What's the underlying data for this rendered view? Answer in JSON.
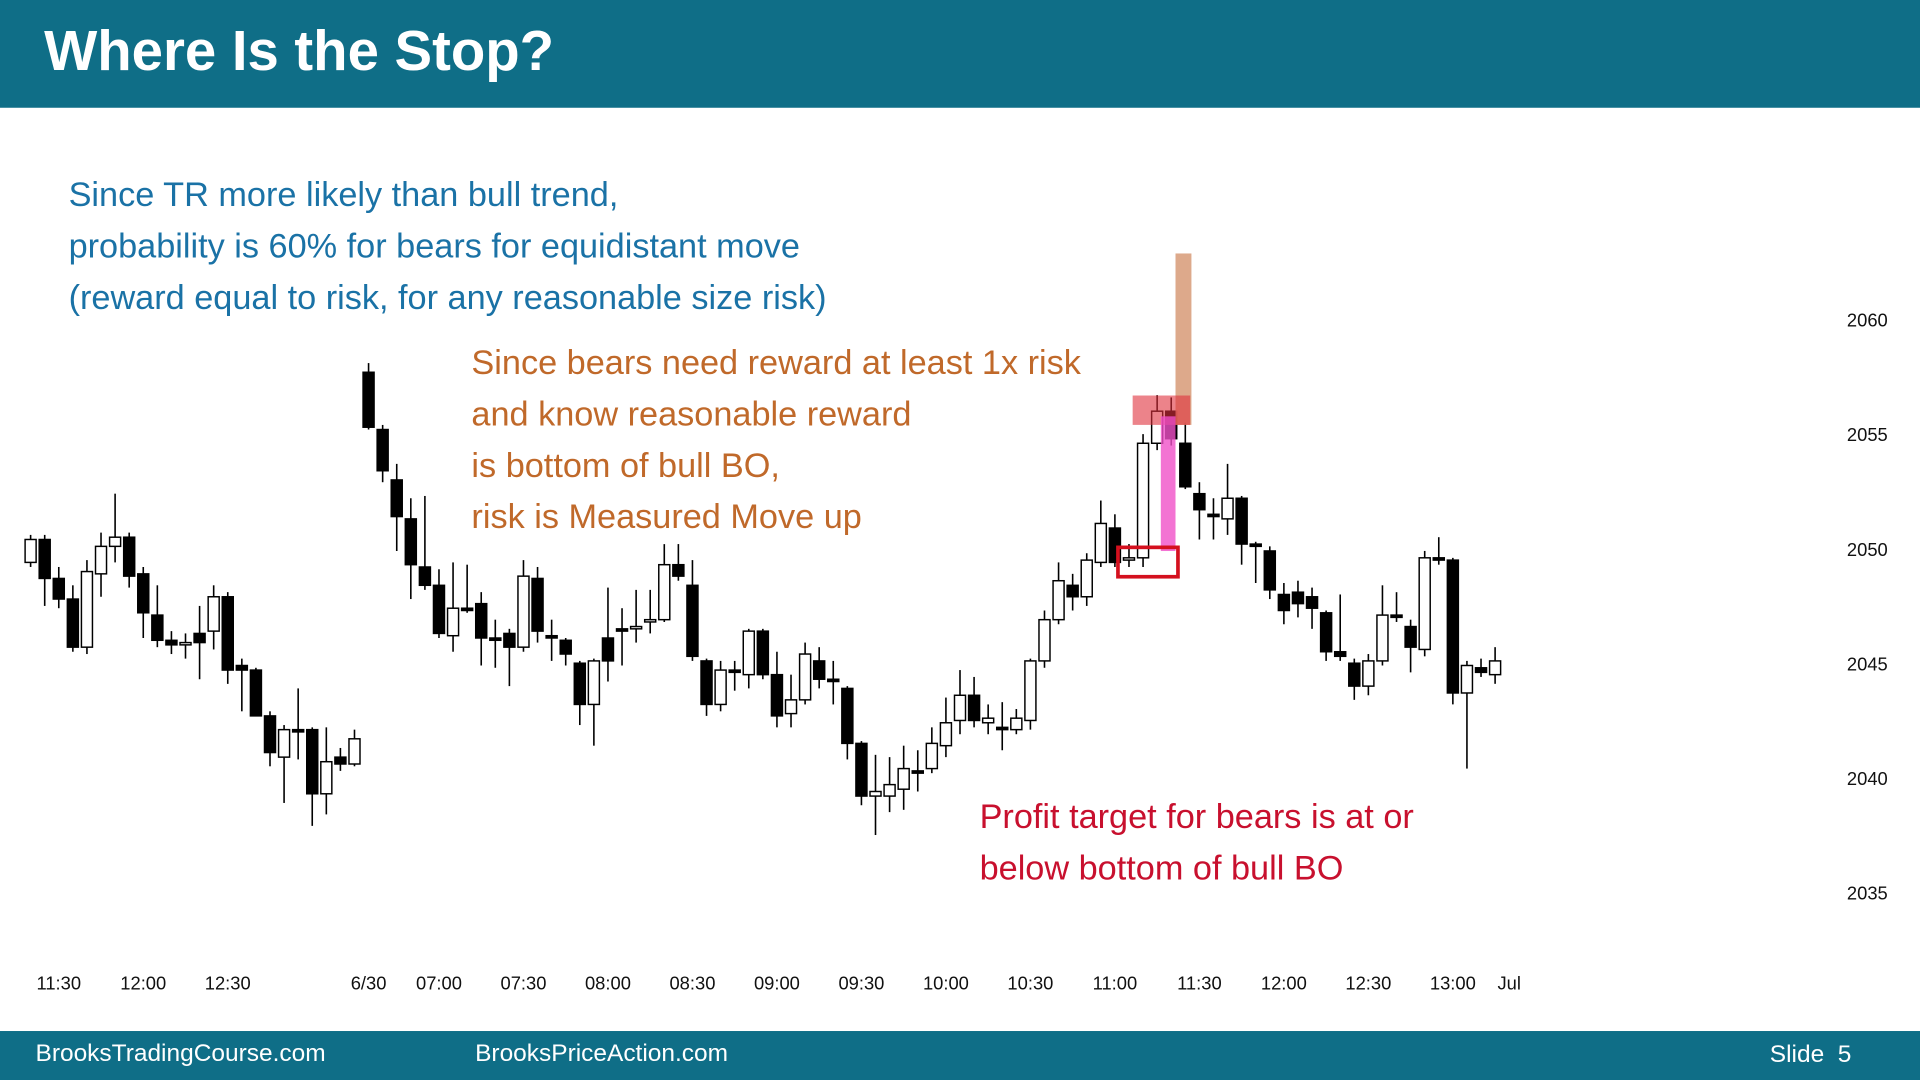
{
  "header": {
    "title": "Where Is the Stop?"
  },
  "chart_data": {
    "type": "candlestick",
    "categories": [
      null,
      null,
      "11:30",
      null,
      null,
      null,
      null,
      null,
      "12:00",
      null,
      null,
      null,
      null,
      null,
      "12:30",
      null,
      null,
      null,
      null,
      null,
      null,
      null,
      null,
      null,
      "6/30",
      null,
      null,
      null,
      null,
      "07:00",
      null,
      null,
      null,
      null,
      null,
      "07:30",
      null,
      null,
      null,
      null,
      null,
      "08:00",
      null,
      null,
      null,
      null,
      null,
      "08:30",
      null,
      null,
      null,
      null,
      null,
      "09:00",
      null,
      null,
      null,
      null,
      null,
      "09:30",
      null,
      null,
      null,
      null,
      null,
      "10:00",
      null,
      null,
      null,
      null,
      null,
      "10:30",
      null,
      null,
      null,
      null,
      null,
      "11:00",
      null,
      null,
      null,
      null,
      null,
      "11:30",
      null,
      null,
      null,
      null,
      null,
      "12:00",
      null,
      null,
      null,
      null,
      null,
      "12:30",
      null,
      null,
      null,
      null,
      null,
      "13:00",
      null,
      null,
      null,
      "Jul"
    ],
    "open": [
      2049.5,
      2050.5,
      2048.8,
      2047.9,
      2045.8,
      2049,
      2050.2,
      2050.6,
      2049,
      2047.2,
      2046.1,
      2045.9,
      2046.4,
      2046.5,
      2048,
      2045,
      2044.8,
      2042.8,
      2041,
      2042.2,
      2042.2,
      2039.4,
      2041,
      2040.7,
      2057.8,
      2055.3,
      2053.1,
      2051.4,
      2049.3,
      2048.5,
      2046.3,
      2047.5,
      2047.7,
      2046.2,
      2046.4,
      2045.8,
      2048.8,
      2046.3,
      2046.1,
      2045.1,
      2043.3,
      2046.2,
      2046.6,
      2046.6,
      2046.9,
      2047,
      2049.4,
      2048.5,
      2045.2,
      2043.3,
      2044.8,
      2044.6,
      2046.5,
      2044.6,
      2042.9,
      2043.5,
      2045.2,
      2044.4,
      2044,
      2041.6,
      2039.3,
      2039.3,
      2039.6,
      2040.4,
      2040.5,
      2041.5,
      2042.6,
      2043.7,
      2042.5,
      2042.3,
      2042.2,
      2042.6,
      2045.2,
      2047,
      2048.5,
      2048,
      2049.5,
      2051,
      2049.6,
      2049.7,
      2054.7,
      2056.1,
      2054.7,
      2052.5,
      2051.6,
      2051.4,
      2052.3,
      2050.3,
      2050,
      2048.1,
      2048.2,
      2048,
      2047.3,
      2045.6,
      2045.1,
      2044.1,
      2045.2,
      2047.2,
      2046.7,
      2045.7,
      2049.7,
      2049.6,
      2043.8,
      2044.9,
      2044.6,
      null
    ],
    "high": [
      2050.7,
      2050.7,
      2049.3,
      2048.5,
      2049.6,
      2050.8,
      2052.5,
      2050.8,
      2049.3,
      2048.5,
      2046.5,
      2046.4,
      2047.6,
      2048.5,
      2048.2,
      2045.3,
      2044.9,
      2043,
      2042.4,
      2044,
      2042.3,
      2042.3,
      2041.4,
      2042.2,
      2058.2,
      2055.5,
      2053.8,
      2052.3,
      2052.4,
      2049.2,
      2049.5,
      2049.4,
      2048.2,
      2047,
      2046.6,
      2049.6,
      2049.3,
      2047,
      2046.2,
      2045.2,
      2045.3,
      2048.4,
      2047.5,
      2048.3,
      2048.3,
      2050.3,
      2050.3,
      2049.6,
      2045.3,
      2045.2,
      2045.2,
      2046.6,
      2046.6,
      2045.6,
      2044.6,
      2046,
      2045.8,
      2045.2,
      2044.1,
      2041.7,
      2041.1,
      2041,
      2041.5,
      2041.3,
      2042.3,
      2043.6,
      2044.8,
      2044.5,
      2043.3,
      2043.4,
      2043.1,
      2045.3,
      2047.4,
      2049.5,
      2049,
      2049.9,
      2052.2,
      2051.6,
      2050.3,
      2055.1,
      2056.8,
      2056.7,
      2055.6,
      2053,
      2052.3,
      2053.8,
      2052.4,
      2050.4,
      2050.2,
      2048.6,
      2048.7,
      2048.4,
      2047.4,
      2048.1,
      2045.3,
      2045.5,
      2048.5,
      2048.2,
      2047,
      2050,
      2050.6,
      2049.7,
      2045.2,
      2045.3,
      2045.8,
      null
    ],
    "low": [
      2049.3,
      2047.6,
      2047.5,
      2045.6,
      2045.5,
      2048,
      2049.5,
      2048.4,
      2046.2,
      2045.8,
      2045.5,
      2045.3,
      2044.4,
      2045.7,
      2044.2,
      2043,
      2042.8,
      2040.6,
      2039,
      2040.9,
      2038,
      2038.5,
      2040.4,
      2040.6,
      2055.3,
      2053,
      2050,
      2047.9,
      2048.3,
      2046.2,
      2045.6,
      2047.3,
      2045,
      2044.9,
      2044.1,
      2045.6,
      2046,
      2045.2,
      2045,
      2042.4,
      2041.5,
      2044.3,
      2045,
      2046,
      2046.4,
      2046.9,
      2048.7,
      2045.2,
      2042.8,
      2043,
      2043.9,
      2044,
      2044.4,
      2042.3,
      2042.3,
      2043.3,
      2044,
      2043.3,
      2040.9,
      2038.9,
      2037.6,
      2038.6,
      2038.7,
      2039.5,
      2040.3,
      2041,
      2042,
      2042.3,
      2042,
      2041.3,
      2042,
      2042.2,
      2044.9,
      2046.8,
      2047.4,
      2047.6,
      2049.3,
      2049.3,
      2049.3,
      2049.3,
      2054.4,
      2054.6,
      2052.7,
      2050.5,
      2050.5,
      2050.7,
      2049.4,
      2048.6,
      2047.9,
      2046.8,
      2047.1,
      2046.6,
      2045.2,
      2045.2,
      2043.5,
      2043.7,
      2045,
      2046.9,
      2044.7,
      2045.4,
      2049.4,
      2043.3,
      2040.5,
      2044.5,
      2044.2,
      null
    ],
    "close": [
      2050.5,
      2048.8,
      2047.9,
      2045.8,
      2049.1,
      2050.2,
      2050.6,
      2048.9,
      2047.3,
      2046.1,
      2045.9,
      2046,
      2046,
      2048,
      2044.8,
      2044.8,
      2042.8,
      2041.2,
      2042.2,
      2042.1,
      2039.4,
      2040.8,
      2040.7,
      2041.8,
      2055.4,
      2053.5,
      2051.5,
      2049.4,
      2048.5,
      2046.4,
      2047.5,
      2047.4,
      2046.2,
      2046.1,
      2045.8,
      2048.9,
      2046.5,
      2046.2,
      2045.5,
      2043.3,
      2045.2,
      2045.2,
      2046.5,
      2046.7,
      2047,
      2049.4,
      2048.9,
      2045.4,
      2043.3,
      2044.8,
      2044.7,
      2046.5,
      2044.6,
      2042.8,
      2043.5,
      2045.5,
      2044.4,
      2044.3,
      2041.6,
      2039.3,
      2039.5,
      2039.8,
      2040.5,
      2040.3,
      2041.6,
      2042.5,
      2043.7,
      2042.6,
      2042.7,
      2042.2,
      2042.7,
      2045.2,
      2047,
      2048.7,
      2048,
      2049.6,
      2051.2,
      2049.5,
      2049.7,
      2054.7,
      2056.1,
      2054.9,
      2052.8,
      2051.8,
      2051.5,
      2052.3,
      2050.3,
      2050.2,
      2048.3,
      2047.4,
      2047.7,
      2047.5,
      2045.6,
      2045.4,
      2044.1,
      2045.2,
      2047.2,
      2047.1,
      2045.8,
      2049.7,
      2049.6,
      2043.8,
      2045,
      2044.7,
      2045.2,
      null
    ],
    "up_color": "#ffffff",
    "down_color": "#000000",
    "ylim": [
      2033,
      2064
    ],
    "yticks": [
      2035,
      2040,
      2045,
      2050,
      2055,
      2060
    ],
    "annotations": [
      {
        "color": "#1a72a6",
        "lines": [
          "Since TR more likely than bull trend,",
          "probability is 60% for bears for equidistant move",
          "(reward equal to risk, for any reasonable size risk)"
        ]
      },
      {
        "color": "#c0692a",
        "lines": [
          "Since bears need reward at least 1x risk",
          "and know reasonable reward",
          "is bottom of bull BO,",
          "risk is Measured Move up"
        ]
      },
      {
        "color": "#c8102e",
        "lines": [
          "Profit target for bears is at or",
          "below bottom of bull BO"
        ]
      }
    ]
  },
  "footer": {
    "left": "BrooksTradingCourse.com",
    "center": "BrooksPriceAction.com",
    "slide": "Slide  5"
  }
}
